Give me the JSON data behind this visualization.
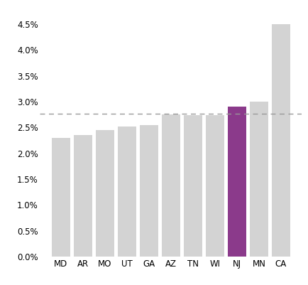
{
  "categories": [
    "MD",
    "AR",
    "MO",
    "UT",
    "GA",
    "AZ",
    "TN",
    "WI",
    "NJ",
    "MN",
    "CA"
  ],
  "values": [
    0.023,
    0.0235,
    0.0245,
    0.0252,
    0.0254,
    0.0275,
    0.0274,
    0.0274,
    0.029,
    0.03,
    0.045
  ],
  "bar_colors": [
    "#d3d3d3",
    "#d3d3d3",
    "#d3d3d3",
    "#d3d3d3",
    "#d3d3d3",
    "#d3d3d3",
    "#d3d3d3",
    "#d3d3d3",
    "#8B3A8B",
    "#d3d3d3",
    "#d3d3d3"
  ],
  "dashed_line_y": 0.0277,
  "dashed_line_color": "#999999",
  "ylim": [
    0,
    0.048
  ],
  "yticks": [
    0.0,
    0.005,
    0.01,
    0.015,
    0.02,
    0.025,
    0.03,
    0.035,
    0.04,
    0.045
  ],
  "background_color": "#ffffff",
  "bar_edge_color": "none",
  "bar_width": 0.82
}
